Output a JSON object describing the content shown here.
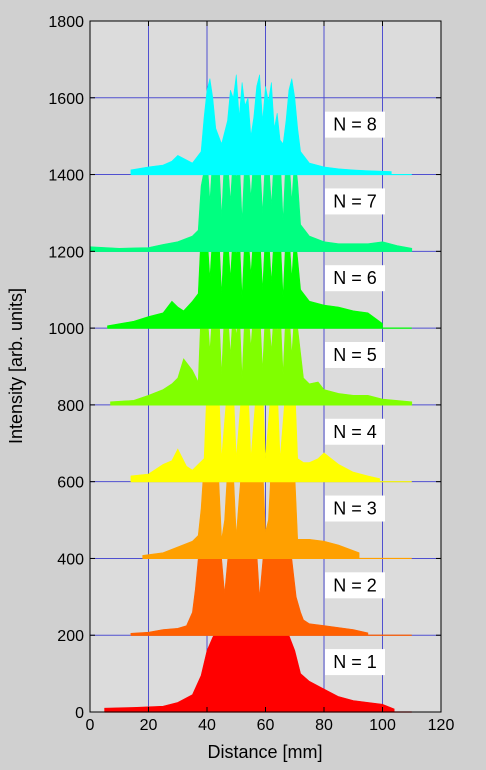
{
  "chart_data": {
    "type": "area",
    "xlabel": "Distance [mm]",
    "ylabel": "Intensity [arb. units]",
    "xlim": [
      0,
      120
    ],
    "ylim": [
      0,
      1800
    ],
    "xticks": [
      0,
      20,
      40,
      60,
      80,
      100,
      120
    ],
    "yticks": [
      0,
      200,
      400,
      600,
      800,
      1000,
      1200,
      1400,
      1600,
      1800
    ],
    "grid": true,
    "colors": {
      "background": "#dcdcdc",
      "figure": "#d0d0d0",
      "grid": "#5050d0"
    },
    "series": [
      {
        "name": "N = 1",
        "offset": 0,
        "color": "#ff0000",
        "x": [
          5,
          15,
          25,
          30,
          35,
          38,
          40,
          42,
          45,
          50,
          55,
          60,
          65,
          68,
          70,
          72,
          75,
          80,
          85,
          90,
          95,
          100,
          104
        ],
        "y": [
          10,
          12,
          15,
          25,
          45,
          95,
          160,
          195,
          230,
          255,
          255,
          255,
          240,
          200,
          160,
          100,
          80,
          60,
          40,
          30,
          25,
          20,
          8
        ]
      },
      {
        "name": "N = 2",
        "offset": 200,
        "color": "#ff6000",
        "x": [
          14,
          20,
          25,
          30,
          33,
          35,
          36,
          37.5,
          40,
          43,
          45,
          46,
          47.5,
          50,
          55,
          57,
          58,
          59.5,
          63,
          67,
          69,
          70.5,
          72,
          73,
          75,
          80,
          85,
          90,
          95
        ],
        "y": [
          5,
          8,
          15,
          18,
          25,
          60,
          120,
          240,
          250,
          250,
          200,
          110,
          230,
          255,
          255,
          220,
          100,
          230,
          255,
          255,
          200,
          100,
          60,
          40,
          30,
          25,
          20,
          15,
          6
        ]
      },
      {
        "name": "N = 3",
        "offset": 400,
        "color": "#ffa000",
        "x": [
          18,
          25,
          30,
          35,
          37,
          38,
          39,
          42,
          44,
          45,
          46,
          47,
          49,
          50,
          51,
          52,
          55,
          59,
          60,
          61,
          62,
          65,
          68,
          70,
          71,
          75,
          80,
          85,
          92
        ],
        "y": [
          8,
          15,
          30,
          45,
          60,
          130,
          250,
          250,
          210,
          50,
          100,
          230,
          230,
          60,
          160,
          250,
          250,
          250,
          70,
          100,
          250,
          250,
          250,
          220,
          50,
          50,
          45,
          35,
          15
        ]
      },
      {
        "name": "N = 4",
        "offset": 600,
        "color": "#ffff00",
        "x": [
          14,
          20,
          25,
          28,
          30,
          33,
          35,
          37,
          39,
          40,
          42,
          44,
          45,
          47,
          49,
          50,
          52,
          54,
          55,
          57,
          59,
          60,
          62,
          64,
          65,
          67,
          69,
          70,
          71,
          73,
          75,
          78,
          80,
          85,
          90,
          95,
          99
        ],
        "y": [
          15,
          20,
          45,
          55,
          85,
          40,
          30,
          45,
          60,
          250,
          250,
          250,
          60,
          250,
          250,
          60,
          250,
          250,
          60,
          250,
          250,
          60,
          250,
          250,
          60,
          250,
          250,
          250,
          60,
          50,
          50,
          60,
          75,
          45,
          25,
          15,
          8
        ]
      },
      {
        "name": "N = 5",
        "offset": 800,
        "color": "#80ff00",
        "x": [
          7,
          15,
          20,
          25,
          28,
          30,
          32,
          35,
          37,
          38,
          40,
          41,
          42,
          43,
          44,
          45,
          46,
          47,
          48,
          49,
          50,
          51,
          52,
          53,
          54,
          55,
          56,
          57,
          58,
          59,
          60,
          61,
          62,
          63,
          64,
          65,
          66,
          67,
          68,
          69,
          70,
          71,
          73,
          75,
          78,
          80,
          85,
          90,
          95,
          100,
          110
        ],
        "y": [
          8,
          12,
          25,
          40,
          55,
          70,
          120,
          90,
          60,
          250,
          250,
          140,
          250,
          200,
          250,
          80,
          250,
          250,
          130,
          250,
          180,
          250,
          70,
          250,
          250,
          150,
          250,
          210,
          250,
          90,
          250,
          250,
          140,
          250,
          190,
          250,
          80,
          250,
          250,
          130,
          250,
          200,
          70,
          55,
          60,
          40,
          30,
          25,
          25,
          15,
          8
        ]
      },
      {
        "name": "N = 6",
        "offset": 1000,
        "color": "#00ff00",
        "x": [
          6,
          15,
          20,
          25,
          28,
          30,
          32,
          35,
          37,
          38,
          40,
          41,
          42,
          43,
          44,
          45,
          46,
          47,
          48,
          49,
          50,
          51,
          52,
          53,
          54,
          55,
          56,
          57,
          58,
          59,
          60,
          61,
          62,
          63,
          64,
          65,
          66,
          67,
          68,
          69,
          70,
          71,
          72,
          75,
          80,
          85,
          90,
          95,
          100
        ],
        "y": [
          6,
          18,
          30,
          40,
          70,
          55,
          45,
          70,
          90,
          250,
          250,
          130,
          250,
          220,
          250,
          90,
          250,
          250,
          130,
          250,
          190,
          250,
          80,
          250,
          250,
          140,
          250,
          210,
          250,
          100,
          250,
          250,
          120,
          250,
          200,
          250,
          80,
          250,
          250,
          130,
          250,
          180,
          100,
          70,
          60,
          55,
          45,
          40,
          12
        ]
      },
      {
        "name": "N = 7",
        "offset": 1200,
        "color": "#00ff80",
        "x": [
          0,
          10,
          20,
          25,
          30,
          35,
          37,
          38,
          40,
          41,
          42,
          43,
          44,
          45,
          46,
          47,
          48,
          49,
          50,
          51,
          52,
          53,
          54,
          55,
          56,
          57,
          58,
          59,
          60,
          61,
          62,
          63,
          64,
          65,
          66,
          67,
          68,
          69,
          70,
          71,
          72,
          75,
          80,
          85,
          90,
          95,
          100,
          105,
          110
        ],
        "y": [
          12,
          8,
          10,
          18,
          25,
          40,
          55,
          170,
          250,
          130,
          250,
          200,
          250,
          90,
          250,
          250,
          130,
          250,
          190,
          250,
          80,
          250,
          250,
          140,
          250,
          210,
          250,
          100,
          250,
          250,
          120,
          250,
          200,
          250,
          80,
          250,
          250,
          130,
          250,
          180,
          70,
          40,
          25,
          20,
          20,
          20,
          25,
          15,
          8
        ]
      },
      {
        "name": "N = 8",
        "offset": 1400,
        "color": "#00ffff",
        "x": [
          14,
          20,
          25,
          28,
          30,
          35,
          38,
          39,
          40,
          41,
          42,
          43,
          45,
          47,
          48,
          49,
          50,
          51,
          52,
          53,
          54,
          55,
          56,
          57,
          58,
          59,
          60,
          61,
          62,
          63,
          64,
          65,
          66,
          67,
          68,
          69,
          70,
          71,
          72,
          75,
          80,
          85,
          90,
          95,
          103
        ],
        "y": [
          12,
          20,
          25,
          35,
          50,
          30,
          60,
          150,
          220,
          250,
          200,
          120,
          80,
          140,
          220,
          200,
          260,
          150,
          240,
          180,
          200,
          100,
          150,
          230,
          260,
          140,
          230,
          190,
          240,
          120,
          160,
          90,
          80,
          140,
          220,
          250,
          200,
          120,
          60,
          30,
          20,
          15,
          12,
          10,
          8
        ]
      }
    ]
  }
}
